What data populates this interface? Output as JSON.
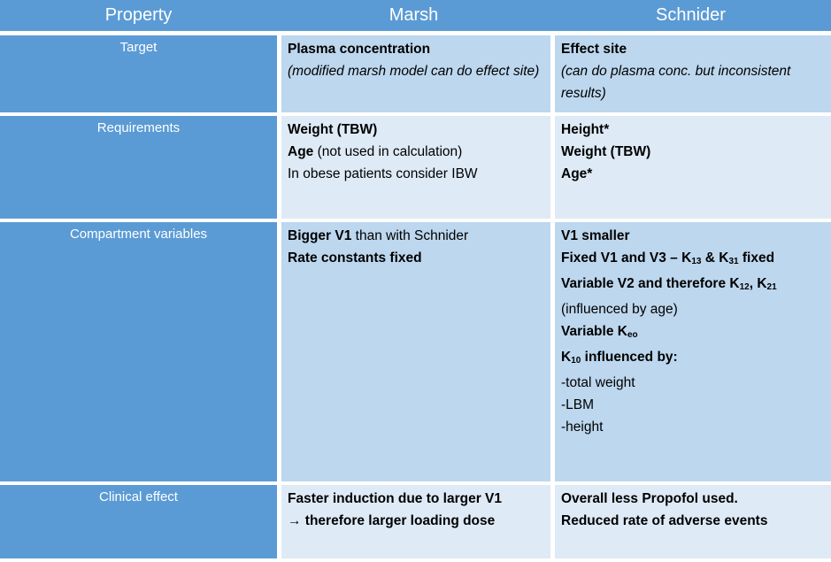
{
  "colors": {
    "header_blue": "#5b9bd5",
    "band_dark": "#bdd7ee",
    "band_light": "#deeaf6",
    "gutter_white": "#ffffff",
    "header_text": "#ffffff",
    "body_text": "#000000"
  },
  "header": {
    "columns": [
      "Property",
      "Marsh",
      "Schnider"
    ]
  },
  "rows": [
    {
      "property": "Target",
      "band": "dark",
      "marsh": [
        [
          {
            "t": "Plasma concentration",
            "b": true
          }
        ],
        [
          {
            "t": "(modified marsh model can do effect site)",
            "i": true
          }
        ]
      ],
      "schnider": [
        [
          {
            "t": "Effect site",
            "b": true
          }
        ],
        [
          {
            "t": "(can do plasma conc. but inconsistent results)",
            "i": true
          }
        ]
      ]
    },
    {
      "property": "Requirements",
      "band": "light",
      "marsh": [
        [
          {
            "t": "Weight (TBW)",
            "b": true
          }
        ],
        [
          {
            "t": "Age",
            "b": true
          },
          {
            "t": " (not used in calculation)"
          }
        ],
        [
          {
            "t": "In obese patients consider IBW"
          }
        ]
      ],
      "schnider": [
        [
          {
            "t": "Height*",
            "b": true
          }
        ],
        [
          {
            "t": "Weight (TBW)",
            "b": true
          }
        ],
        [
          {
            "t": "Age*",
            "b": true
          }
        ]
      ]
    },
    {
      "property": "Compartment variables",
      "band": "dark",
      "marsh": [
        [
          {
            "t": "Bigger V1",
            "b": true
          },
          {
            "t": " than with Schnider"
          }
        ],
        [
          {
            "t": "Rate constants fixed",
            "b": true
          }
        ]
      ],
      "schnider": [
        [
          {
            "t": "V1 smaller",
            "b": true
          }
        ],
        [
          {
            "t": "Fixed V1 and V3 – K",
            "b": true
          },
          {
            "t": "13",
            "b": true,
            "sub": true
          },
          {
            "t": " & K",
            "b": true
          },
          {
            "t": "31",
            "b": true,
            "sub": true
          },
          {
            "t": " fixed",
            "b": true
          }
        ],
        [
          {
            "t": "Variable V2 and therefore K",
            "b": true
          },
          {
            "t": "12",
            "b": true,
            "sub": true
          },
          {
            "t": ", K",
            "b": true
          },
          {
            "t": "21",
            "b": true,
            "sub": true
          }
        ],
        [
          {
            "t": "(influenced by age)"
          }
        ],
        [
          {
            "t": "Variable K",
            "b": true
          },
          {
            "t": "eo",
            "b": true,
            "sub": true
          }
        ],
        [
          {
            "t": "K",
            "b": true
          },
          {
            "t": "10",
            "b": true,
            "sub": true
          },
          {
            "t": " influenced by:",
            "b": true
          }
        ],
        [
          {
            "t": "-total weight"
          }
        ],
        [
          {
            "t": "-LBM"
          }
        ],
        [
          {
            "t": "-height"
          }
        ]
      ]
    },
    {
      "property": "Clinical effect",
      "band": "light",
      "marsh": [
        [
          {
            "t": "Faster induction due to larger V1",
            "b": true
          }
        ],
        [
          {
            "t": "→ therefore larger loading dose",
            "b": true
          }
        ]
      ],
      "schnider": [
        [
          {
            "t": "Overall less Propofol used.",
            "b": true
          }
        ],
        [
          {
            "t": "Reduced rate of adverse events",
            "b": true
          }
        ]
      ]
    }
  ]
}
